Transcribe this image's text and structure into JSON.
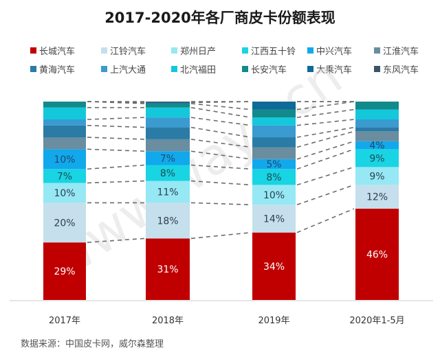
{
  "chart_data": {
    "type": "bar",
    "stacked": true,
    "title": "2017-2020年各厂商皮卡份额表现",
    "categories": [
      "2017年",
      "2018年",
      "2019年",
      "2020年1-5月"
    ],
    "xlabel": "",
    "ylabel": "",
    "ylim": [
      0,
      100
    ],
    "unit": "%",
    "legend_position": "top",
    "connector_lines": "dashed",
    "series": [
      {
        "name": "长城汽车",
        "color": "#c00000",
        "label_color": "#ffffff",
        "values": [
          29,
          31,
          34,
          46
        ],
        "labels": [
          "29%",
          "31%",
          "34%",
          "46%"
        ]
      },
      {
        "name": "江铃汽车",
        "color": "#c5dfec",
        "label_color": "#2d3e50",
        "values": [
          20,
          18,
          14,
          12
        ],
        "labels": [
          "20%",
          "18%",
          "14%",
          "12%"
        ]
      },
      {
        "name": "郑州日产",
        "color": "#96e8f4",
        "label_color": "#2d3e50",
        "values": [
          10,
          11,
          10,
          9
        ],
        "labels": [
          "10%",
          "11%",
          "10%",
          "9%"
        ]
      },
      {
        "name": "江西五十铃",
        "color": "#19d4e2",
        "label_color": "#1d4a5a",
        "values": [
          7,
          8,
          8,
          9
        ],
        "labels": [
          "7%",
          "8%",
          "8%",
          "9%"
        ]
      },
      {
        "name": "中兴汽车",
        "color": "#12a8ec",
        "label_color": "#1d4a6a",
        "values": [
          10,
          7,
          5,
          4
        ],
        "labels": [
          "10%",
          "7%",
          "5%",
          "4%"
        ]
      },
      {
        "name": "江淮汽车",
        "color": "#6a8da0",
        "label_color": "",
        "values": [
          6,
          6,
          6,
          5
        ],
        "labels": [
          "",
          "",
          "",
          ""
        ]
      },
      {
        "name": "黄海汽车",
        "color": "#2a7ba6",
        "label_color": "",
        "values": [
          6,
          6,
          5,
          2
        ],
        "labels": [
          "",
          "",
          "",
          ""
        ]
      },
      {
        "name": "上汽大通",
        "color": "#3a9bd0",
        "label_color": "",
        "values": [
          3,
          5,
          6,
          4
        ],
        "labels": [
          "",
          "",
          "",
          ""
        ]
      },
      {
        "name": "北汽福田",
        "color": "#14c8dc",
        "label_color": "",
        "values": [
          6,
          5,
          4,
          5
        ],
        "labels": [
          "",
          "",
          "",
          ""
        ]
      },
      {
        "name": "长安汽车",
        "color": "#128a8c",
        "label_color": "",
        "values": [
          3,
          2,
          4,
          4
        ],
        "labels": [
          "",
          "",
          "",
          ""
        ]
      },
      {
        "name": "大乘汽车",
        "color": "#0e6a98",
        "label_color": "",
        "values": [
          0,
          0.5,
          4,
          0
        ],
        "labels": [
          "",
          "",
          "",
          ""
        ]
      },
      {
        "name": "东风汽车",
        "color": "#3a5468",
        "label_color": "",
        "values": [
          0,
          0.5,
          0,
          0
        ],
        "labels": [
          "",
          "",
          "",
          ""
        ]
      }
    ]
  },
  "source_note": "数据来源：中国皮卡网，威尔森整理",
  "watermark": "www.ways.cn"
}
